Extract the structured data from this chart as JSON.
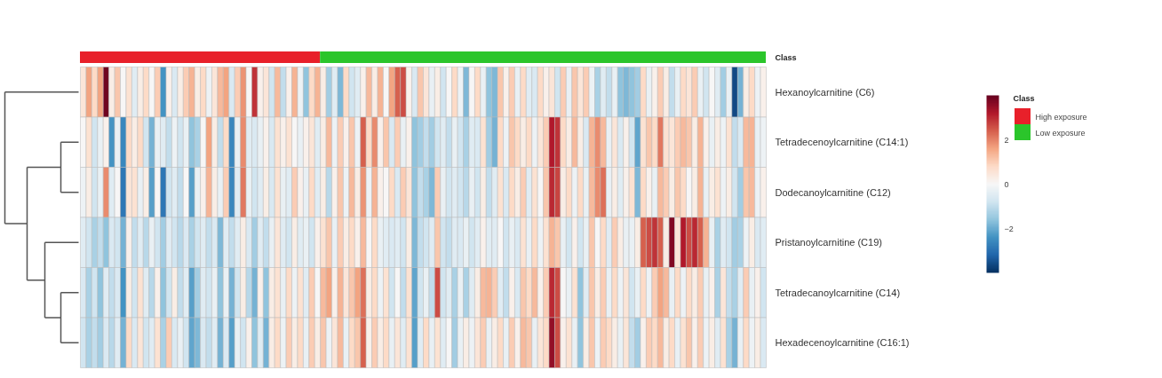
{
  "chart_data": {
    "type": "heatmap",
    "tick_labels": "y",
    "categories": [
      null,
      null,
      null,
      null,
      null,
      null,
      null,
      null,
      null,
      null,
      null,
      null,
      null,
      null,
      null,
      null,
      null,
      null,
      null,
      null,
      null,
      null,
      null,
      null,
      null,
      null,
      null,
      null,
      null,
      null,
      null,
      null,
      null,
      null,
      null,
      null,
      null,
      null,
      null,
      null,
      null,
      null,
      null,
      null,
      null,
      null,
      null,
      null,
      null,
      null,
      null,
      null,
      null,
      null,
      null,
      null,
      null,
      null,
      null,
      null,
      null,
      null,
      null,
      null,
      null,
      null,
      null,
      null,
      null,
      null,
      null,
      null,
      null,
      null,
      null,
      null,
      null,
      null,
      null,
      null,
      null,
      null,
      null,
      null,
      null,
      null,
      null,
      null,
      null,
      null,
      null,
      null,
      null,
      null,
      null,
      null,
      null,
      null,
      null,
      null,
      null,
      null,
      null,
      null,
      null,
      null,
      null,
      null,
      null,
      null,
      null,
      null,
      null,
      null,
      null,
      null,
      null,
      null,
      null,
      null
    ],
    "y_categories": [
      "Hexanoylcarnitine (C6)",
      "Tetradecenoylcarnitine (C14:1)",
      "Dodecanoylcarnitine (C12)",
      "Pristanoylcarnitine (C19)",
      "Tetradecanoylcarnitine (C14)",
      "Hexadecenoylcarnitine (C16:1)"
    ],
    "cells": [
      [
        0.5,
        1.6,
        0.8,
        1.6,
        3.9,
        0.3,
        1.1,
        0,
        0.6,
        -0.5,
        0.3,
        0.8,
        0,
        1.0,
        -2.4,
        0.2,
        -0.6,
        0.3,
        1.0,
        1.4,
        0.3,
        0.8,
        -0.2,
        0.5,
        1.3,
        1.6,
        -0.6,
        1.0,
        1.8,
        0,
        2.9,
        0.2,
        0.5,
        -0.8,
        1.3,
        -1.0,
        0.2,
        1.4,
        -0.2,
        -1.6,
        0.8,
        1.4,
        0.3,
        -1.4,
        -0.5,
        -1.8,
        0.8,
        -0.8,
        -0.5,
        0.2,
        1.3,
        0.3,
        1.4,
        0,
        1.6,
        2.4,
        2.6,
        0.2,
        -0.6,
        1.1,
        0.5,
        -0.3,
        0.3,
        -0.8,
        0,
        0.8,
        -0.2,
        -1.8,
        0,
        0.8,
        -0.3,
        -1.6,
        -1.8,
        1.1,
        0.2,
        1.0,
        -0.3,
        0.8,
        -0.5,
        -0.6,
        0.8,
        0.2,
        0.5,
        -0.8,
        1.0,
        -0.3,
        1.1,
        0.5,
        1.0,
        -0.2,
        -1.3,
        -0.5,
        -1.0,
        -0.3,
        -1.6,
        -1.8,
        -1.6,
        -1.4,
        0.8,
        -0.3,
        0.2,
        1.0,
        0.3,
        -1.0,
        -0.3,
        0.8,
        0.5,
        1.0,
        -0.3,
        -0.8,
        0,
        -0.5,
        -1.4,
        -0.3,
        -3.6,
        -1.9,
        0.3,
        0.8,
        -0.2,
        0.2
      ],
      [
        0,
        0.6,
        -0.8,
        -0.3,
        0.2,
        -2.4,
        -0.3,
        -2.6,
        0.8,
        0.3,
        0.8,
        -0.8,
        -1.9,
        -0.3,
        -0.5,
        -1.0,
        -0.2,
        -0.8,
        -0.3,
        -1.6,
        -1.3,
        0,
        1.6,
        0.3,
        -1.0,
        0.8,
        -2.6,
        -0.3,
        1.9,
        -0.5,
        -0.6,
        -0.3,
        0.2,
        -0.6,
        0.6,
        0.2,
        0.6,
        0,
        -0.3,
        0.2,
        0.5,
        -0.5,
        0.3,
        1.3,
        -0.2,
        1.0,
        0.2,
        1.1,
        -0.2,
        2.4,
        0.8,
        1.9,
        0.2,
        1.1,
        -0.6,
        1.0,
        -0.3,
        0.2,
        -1.6,
        -1.4,
        -1.0,
        -1.4,
        -0.8,
        -0.5,
        -1.0,
        -0.3,
        -0.8,
        -1.3,
        -0.5,
        -0.6,
        0.6,
        -1.4,
        -1.9,
        0.8,
        -0.2,
        1.1,
        0.8,
        0.3,
        0.8,
        -0.2,
        0.5,
        1.0,
        3.2,
        2.9,
        0.8,
        0.3,
        1.3,
        0.3,
        -0.6,
        1.4,
        1.9,
        1.3,
        -0.3,
        0.5,
        -0.6,
        0.2,
        -0.8,
        -2.1,
        0.6,
        1.1,
        0.8,
        2.1,
        0.6,
        0.5,
        1.0,
        1.3,
        1.1,
        0.3,
        1.4,
        0.2,
        -0.3,
        0.3,
        -0.2,
        0.6,
        -1.0,
        -0.6,
        1.3,
        1.4,
        -0.3,
        -0.2
      ],
      [
        -0.2,
        0.3,
        -0.8,
        -0.3,
        1.9,
        -0.5,
        0,
        -2.9,
        0.5,
        0.6,
        -0.3,
        0.3,
        -2.2,
        0,
        -2.9,
        -0.8,
        -0.5,
        -1.0,
        0,
        -2.2,
        -0.3,
        0.2,
        1.4,
        0.3,
        -0.3,
        1.0,
        -2.6,
        -0.5,
        2.1,
        -0.3,
        -0.8,
        -0.5,
        0.3,
        -0.6,
        0.6,
        -0.3,
        -0.5,
        1.0,
        0.2,
        -0.3,
        0.8,
        -0.5,
        0.3,
        -1.1,
        0.2,
        1.1,
        -0.2,
        1.3,
        0.3,
        1.8,
        -0.2,
        1.4,
        0.2,
        0,
        0.8,
        -0.6,
        1.0,
        0.5,
        -1.6,
        -1.0,
        -1.3,
        -1.8,
        1.0,
        -0.3,
        -0.8,
        -0.5,
        -0.8,
        -1.1,
        -0.3,
        -0.8,
        0.3,
        -1.0,
        -0.5,
        0.6,
        -0.6,
        0.8,
        0.3,
        1.0,
        -0.5,
        0.6,
        0,
        1.1,
        3.0,
        2.7,
        0.3,
        0.8,
        -0.2,
        0.8,
        -0.3,
        1.3,
        1.9,
        2.2,
        -0.3,
        0.3,
        -0.5,
        0.2,
        0.6,
        -1.8,
        0.8,
        0.2,
        -0.3,
        1.3,
        1.0,
        0.3,
        1.1,
        0.8,
        0,
        0.3,
        1.4,
        -0.3,
        0.3,
        0.6,
        -0.2,
        0.3,
        -0.8,
        -1.4,
        1.1,
        1.3,
        -0.2,
        0.2
      ],
      [
        -0.5,
        -0.8,
        -1.3,
        -1.0,
        -1.6,
        -0.6,
        -0.8,
        -1.9,
        0.2,
        -1.0,
        -0.5,
        -1.1,
        -0.3,
        -0.8,
        -1.4,
        -0.5,
        -0.8,
        -1.1,
        -0.6,
        -1.3,
        -0.8,
        -0.5,
        -1.0,
        -0.6,
        -1.8,
        -0.5,
        -1.0,
        -0.5,
        0.3,
        -0.6,
        -1.4,
        -0.5,
        -1.0,
        -0.3,
        0.5,
        -0.5,
        -0.8,
        0.3,
        -0.5,
        -0.3,
        -0.8,
        0.2,
        0.6,
        1.1,
        -0.3,
        1.0,
        0.3,
        0.8,
        0.2,
        1.3,
        0,
        0.8,
        -0.3,
        -0.5,
        -0.6,
        -0.5,
        -0.8,
        0.3,
        -1.8,
        -1.0,
        -0.8,
        -0.5,
        1.1,
        -0.8,
        -1.0,
        -0.5,
        -0.6,
        -0.3,
        -0.8,
        -0.5,
        0.2,
        -0.5,
        -0.5,
        0,
        -0.8,
        -0.3,
        -0.6,
        0.6,
        -0.3,
        0.8,
        -0.2,
        0.6,
        1.4,
        1.1,
        -0.3,
        -0.8,
        0.2,
        -0.8,
        -0.3,
        1.1,
        0,
        0.8,
        -0.5,
        1.0,
        0.3,
        -0.3,
        -0.3,
        0.3,
        2.4,
        2.6,
        2.9,
        2.4,
        0.3,
        3.7,
        0.5,
        3.2,
        2.6,
        3.0,
        2.4,
        1.4,
        -0.3,
        -1.3,
        -0.5,
        -0.8,
        -1.4,
        -1.3,
        -0.2,
        0.3,
        -0.6,
        -0.5
      ],
      [
        -0.6,
        -1.3,
        -0.8,
        -1.6,
        -0.5,
        -1.0,
        -0.6,
        -2.4,
        0.3,
        -0.8,
        0.6,
        -0.5,
        -1.1,
        0.2,
        -1.6,
        -0.8,
        0.3,
        -1.0,
        -0.5,
        -2.2,
        -1.4,
        -0.5,
        -0.8,
        -0.3,
        -1.6,
        -0.3,
        -1.9,
        -0.8,
        0.3,
        -1.1,
        -1.9,
        0.2,
        -1.6,
        0.3,
        0.6,
        -0.3,
        0.8,
        -0.2,
        0.6,
        -0.5,
        1.0,
        0,
        1.3,
        1.6,
        0.2,
        1.4,
        0.5,
        1.1,
        1.6,
        2.2,
        0.3,
        0.8,
        -0.2,
        0.6,
        -0.8,
        0,
        -1.0,
        0.6,
        -2.1,
        -0.8,
        -0.3,
        -1.0,
        2.6,
        -0.8,
        -0.5,
        -1.3,
        -0.3,
        -1.3,
        -0.5,
        0.3,
        1.3,
        1.4,
        1.0,
        -0.5,
        -1.0,
        0.2,
        -0.6,
        1.1,
        0.8,
        1.3,
        0.2,
        1.0,
        3.0,
        2.6,
        0,
        -0.3,
        0.6,
        -1.6,
        -0.5,
        1.1,
        0.3,
        1.0,
        -0.3,
        0.8,
        -0.2,
        0.5,
        -0.8,
        -0.3,
        0.8,
        -0.2,
        1.0,
        1.6,
        1.3,
        -0.3,
        0.8,
        -0.2,
        0.8,
        0.3,
        1.0,
        -0.3,
        0.2,
        -1.3,
        0.5,
        -1.0,
        -1.3,
        -0.5,
        1.0,
        -0.3,
        0.2,
        -0.8
      ],
      [
        -0.8,
        -1.3,
        -1.0,
        -1.4,
        -0.6,
        -1.1,
        -0.5,
        -1.9,
        0.8,
        -0.6,
        0.5,
        -0.8,
        -0.5,
        0.6,
        -1.3,
        1.0,
        -0.6,
        -0.3,
        -0.8,
        -2.1,
        -1.8,
        -0.6,
        -1.0,
        -0.5,
        -1.9,
        -0.6,
        -2.2,
        -0.3,
        -0.8,
        0.2,
        -1.6,
        -0.5,
        -1.9,
        0.3,
        0.8,
        -0.2,
        1.0,
        0.3,
        0.8,
        -0.3,
        1.0,
        0.3,
        1.1,
        -0.2,
        0.5,
        1.3,
        -0.3,
        0.8,
        1.1,
        2.4,
        0.2,
        1.0,
        0.3,
        0.8,
        -0.3,
        0.5,
        -0.5,
        0.6,
        -2.2,
        -0.5,
        0.8,
        -0.3,
        0.6,
        -0.5,
        0,
        -1.4,
        -0.3,
        0.3,
        -0.2,
        0.5,
        1.0,
        -0.3,
        0.3,
        0.8,
        -0.3,
        1.0,
        0.2,
        1.3,
        1.1,
        -0.3,
        0.5,
        0.8,
        3.5,
        2.6,
        0.2,
        0.6,
        -0.3,
        -1.6,
        0.3,
        1.1,
        -0.2,
        1.0,
        0.8,
        0.3,
        -0.3,
        0.5,
        -1.0,
        -1.4,
        0.2,
        1.0,
        0.8,
        1.3,
        0.3,
        0.8,
        -0.3,
        0.6,
        1.1,
        0.2,
        1.0,
        -0.2,
        0.3,
        -0.5,
        0.6,
        -1.3,
        -1.9,
        -0.3,
        0.8,
        -0.2,
        0.3,
        -0.6
      ]
    ],
    "clim": [
      -4,
      4
    ],
    "cticks": [
      -2,
      0,
      2
    ],
    "annotations": [
      "Class",
      "Class",
      "High exposure",
      "Low exposure"
    ]
  }
}
